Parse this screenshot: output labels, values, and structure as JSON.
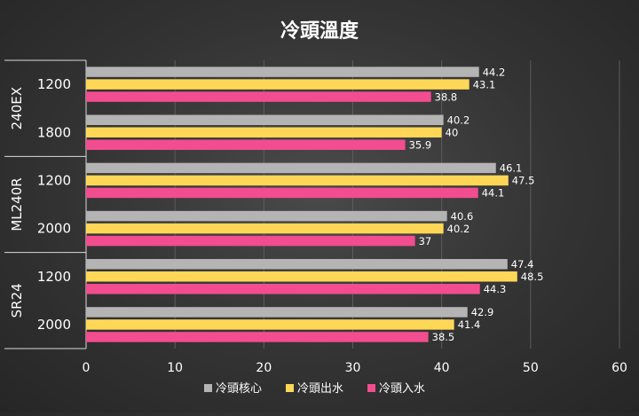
{
  "chart_data": {
    "type": "bar",
    "orientation": "horizontal",
    "title": "冷頭溫度",
    "groups": [
      {
        "name": "240EX",
        "categories": [
          "1200",
          "1800"
        ]
      },
      {
        "name": "ML240R",
        "categories": [
          "1200",
          "2000"
        ]
      },
      {
        "name": "SR24",
        "categories": [
          "1200",
          "2000"
        ]
      }
    ],
    "series": [
      {
        "name": "冷頭核心",
        "color": "#b4b4b4",
        "values": [
          44.2,
          40.2,
          46.1,
          40.6,
          47.4,
          42.9
        ]
      },
      {
        "name": "冷頭出水",
        "color": "#ffd757",
        "values": [
          43.1,
          40,
          47.5,
          40.2,
          48.5,
          41.4
        ]
      },
      {
        "name": "冷頭入水",
        "color": "#f24d8f",
        "values": [
          38.8,
          35.9,
          44.1,
          37,
          44.3,
          38.5
        ]
      }
    ],
    "xlim": [
      0,
      60
    ],
    "xticks": [
      "0",
      "10",
      "20",
      "30",
      "40",
      "50",
      "60"
    ],
    "legend_position": "bottom",
    "grid": true
  }
}
